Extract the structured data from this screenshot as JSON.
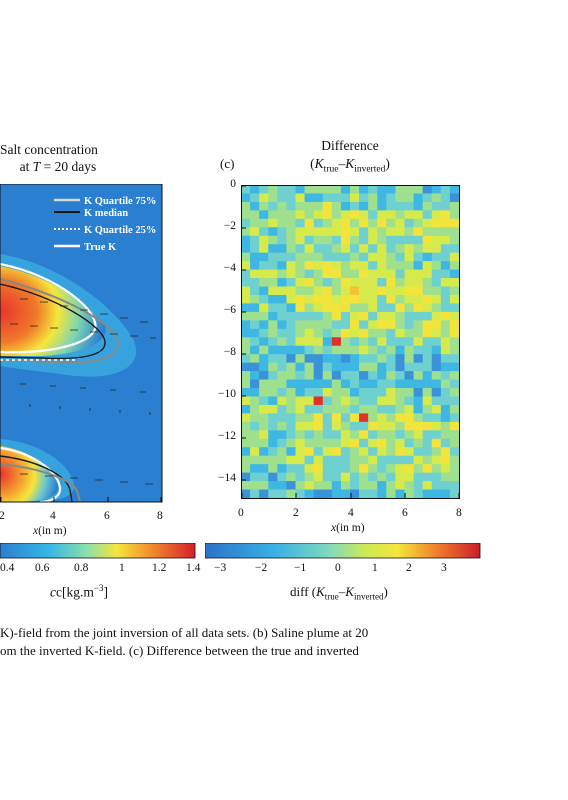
{
  "panel_b": {
    "title_line1": "Salt concentration",
    "title_line2_prefix": "at ",
    "title_line2_var": "T",
    "title_line2_suffix": " = 20 days",
    "legend": [
      "K Quartile 75%",
      "K median",
      "K Quartile 25%",
      "True K"
    ],
    "x_ticks": [
      "2",
      "4",
      "6",
      "8"
    ],
    "xlabel_var": "x",
    "xlabel_rest": "(in m)",
    "colorbar_ticks": [
      "0.4",
      "0.6",
      "0.8",
      "1",
      "1.2",
      "1.4"
    ],
    "colorbar_label": "c[kg.m",
    "colorbar_label_sup": "−3",
    "colorbar_label_end": "]"
  },
  "panel_c": {
    "letter": "(c)",
    "title_line1": "Difference",
    "title_line2_open": "(",
    "title_k1": "K",
    "title_sub1": "true",
    "title_dash": "–",
    "title_k2": "K",
    "title_sub2": "inverted",
    "title_close": ")",
    "y_ticks": [
      "0",
      "−2",
      "−4",
      "−6",
      "−8",
      "−10",
      "−12",
      "−14"
    ],
    "x_ticks": [
      "0",
      "2",
      "4",
      "6",
      "8"
    ],
    "xlabel_var": "x",
    "xlabel_rest": "(in m)",
    "colorbar_ticks": [
      "−3",
      "−2",
      "−1",
      "0",
      "1",
      "2",
      "3"
    ],
    "colorbar_label_prefix": "diff (",
    "colorbar_label_k1": "K",
    "colorbar_label_sub1": "true",
    "colorbar_label_dash": "–",
    "colorbar_label_k2": "K",
    "colorbar_label_sub2": "inverted",
    "colorbar_label_close": ")"
  },
  "caption": {
    "line1": "K)-field from the joint inversion of all data sets. (b) Saline plume at 20",
    "line2": "om the inverted K-field. (c) Difference between the true and inverted"
  },
  "colors": {
    "background_blue": "#2b7fd0",
    "plume_red": "#e8322a",
    "plume_yellow": "#f5e63a",
    "diff_cyan": "#3fb7e3",
    "diff_yellow": "#f3e43c",
    "diff_red": "#e03028"
  }
}
